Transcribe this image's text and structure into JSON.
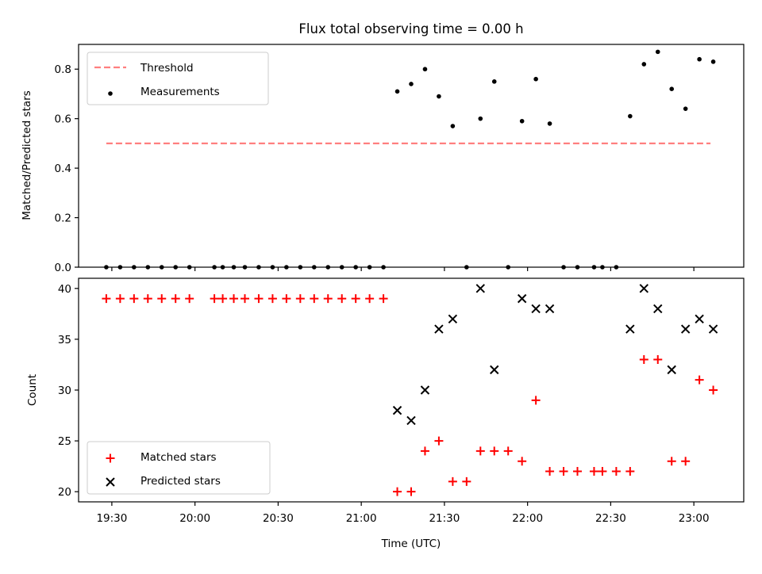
{
  "chart_data": [
    {
      "type": "scatter",
      "title": "Flux total observing time = 0.00 h",
      "xlabel": "",
      "ylabel": "Matched/Predicted stars",
      "xlim": [
        "19:18",
        "23:18"
      ],
      "ylim": [
        0,
        0.9
      ],
      "yticks": [
        0.0,
        0.2,
        0.4,
        0.6,
        0.8
      ],
      "ytick_labels": [
        "0.0",
        "0.2",
        "0.4",
        "0.6",
        "0.8"
      ],
      "xticks": [
        "19:30",
        "20:00",
        "20:30",
        "21:00",
        "21:30",
        "22:00",
        "22:30",
        "23:00"
      ],
      "legend_position": "top-left",
      "series": [
        {
          "name": "Threshold",
          "kind": "line",
          "style": "dashed",
          "color": "#ff7f7f",
          "points": [
            [
              "19:28",
              0.5
            ],
            [
              "23:06",
              0.5
            ]
          ]
        },
        {
          "name": "Measurements",
          "kind": "scatter",
          "marker": "dot",
          "color": "#000000",
          "points": [
            [
              "19:28",
              0.0
            ],
            [
              "19:33",
              0.0
            ],
            [
              "19:38",
              0.0
            ],
            [
              "19:43",
              0.0
            ],
            [
              "19:48",
              0.0
            ],
            [
              "19:53",
              0.0
            ],
            [
              "19:58",
              0.0
            ],
            [
              "20:07",
              0.0
            ],
            [
              "20:10",
              0.0
            ],
            [
              "20:14",
              0.0
            ],
            [
              "20:18",
              0.0
            ],
            [
              "20:23",
              0.0
            ],
            [
              "20:28",
              0.0
            ],
            [
              "20:33",
              0.0
            ],
            [
              "20:38",
              0.0
            ],
            [
              "20:43",
              0.0
            ],
            [
              "20:48",
              0.0
            ],
            [
              "20:53",
              0.0
            ],
            [
              "20:58",
              0.0
            ],
            [
              "21:03",
              0.0
            ],
            [
              "21:08",
              0.0
            ],
            [
              "21:13",
              0.71
            ],
            [
              "21:18",
              0.74
            ],
            [
              "21:23",
              0.8
            ],
            [
              "21:28",
              0.69
            ],
            [
              "21:33",
              0.57
            ],
            [
              "21:38",
              0.0
            ],
            [
              "21:43",
              0.6
            ],
            [
              "21:48",
              0.75
            ],
            [
              "21:53",
              0.0
            ],
            [
              "21:58",
              0.59
            ],
            [
              "22:03",
              0.76
            ],
            [
              "22:08",
              0.58
            ],
            [
              "22:13",
              0.0
            ],
            [
              "22:18",
              0.0
            ],
            [
              "22:24",
              0.0
            ],
            [
              "22:27",
              0.0
            ],
            [
              "22:32",
              0.0
            ],
            [
              "22:37",
              0.61
            ],
            [
              "22:42",
              0.82
            ],
            [
              "22:47",
              0.87
            ],
            [
              "22:52",
              0.72
            ],
            [
              "22:57",
              0.64
            ],
            [
              "23:02",
              0.84
            ],
            [
              "23:07",
              0.83
            ]
          ]
        }
      ]
    },
    {
      "type": "scatter",
      "title": "",
      "xlabel": "Time (UTC)",
      "ylabel": "Count",
      "xlim": [
        "19:18",
        "23:18"
      ],
      "ylim": [
        19,
        41
      ],
      "yticks": [
        20,
        25,
        30,
        35,
        40
      ],
      "ytick_labels": [
        "20",
        "25",
        "30",
        "35",
        "40"
      ],
      "xticks": [
        "19:30",
        "20:00",
        "20:30",
        "21:00",
        "21:30",
        "22:00",
        "22:30",
        "23:00"
      ],
      "legend_position": "bottom-left",
      "series": [
        {
          "name": "Matched stars",
          "kind": "scatter",
          "marker": "plus",
          "color": "#ff0000",
          "points": [
            [
              "19:28",
              39
            ],
            [
              "19:33",
              39
            ],
            [
              "19:38",
              39
            ],
            [
              "19:43",
              39
            ],
            [
              "19:48",
              39
            ],
            [
              "19:53",
              39
            ],
            [
              "19:58",
              39
            ],
            [
              "20:07",
              39
            ],
            [
              "20:10",
              39
            ],
            [
              "20:14",
              39
            ],
            [
              "20:18",
              39
            ],
            [
              "20:23",
              39
            ],
            [
              "20:28",
              39
            ],
            [
              "20:33",
              39
            ],
            [
              "20:38",
              39
            ],
            [
              "20:43",
              39
            ],
            [
              "20:48",
              39
            ],
            [
              "20:53",
              39
            ],
            [
              "20:58",
              39
            ],
            [
              "21:03",
              39
            ],
            [
              "21:08",
              39
            ],
            [
              "21:13",
              20
            ],
            [
              "21:18",
              20
            ],
            [
              "21:23",
              24
            ],
            [
              "21:28",
              25
            ],
            [
              "21:33",
              21
            ],
            [
              "21:38",
              21
            ],
            [
              "21:43",
              24
            ],
            [
              "21:48",
              24
            ],
            [
              "21:53",
              24
            ],
            [
              "21:58",
              23
            ],
            [
              "22:03",
              29
            ],
            [
              "22:08",
              22
            ],
            [
              "22:13",
              22
            ],
            [
              "22:18",
              22
            ],
            [
              "22:24",
              22
            ],
            [
              "22:27",
              22
            ],
            [
              "22:32",
              22
            ],
            [
              "22:37",
              22
            ],
            [
              "22:42",
              33
            ],
            [
              "22:47",
              33
            ],
            [
              "22:52",
              23
            ],
            [
              "22:57",
              23
            ],
            [
              "23:02",
              31
            ],
            [
              "23:07",
              30
            ]
          ]
        },
        {
          "name": "Predicted stars",
          "kind": "scatter",
          "marker": "x",
          "color": "#000000",
          "points": [
            [
              "21:13",
              28
            ],
            [
              "21:18",
              27
            ],
            [
              "21:23",
              30
            ],
            [
              "21:28",
              36
            ],
            [
              "21:33",
              37
            ],
            [
              "21:43",
              40
            ],
            [
              "21:48",
              32
            ],
            [
              "21:58",
              39
            ],
            [
              "22:03",
              38
            ],
            [
              "22:08",
              38
            ],
            [
              "22:37",
              36
            ],
            [
              "22:42",
              40
            ],
            [
              "22:47",
              38
            ],
            [
              "22:52",
              32
            ],
            [
              "22:57",
              36
            ],
            [
              "23:02",
              37
            ],
            [
              "23:07",
              36
            ]
          ]
        }
      ]
    }
  ]
}
